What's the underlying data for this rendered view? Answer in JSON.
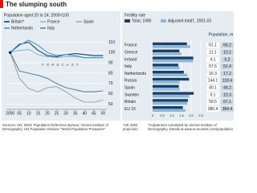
{
  "title": "The slumping south",
  "chart_data": [
    {
      "type": "line",
      "subtitle": "Population aged 20 to 24, 2000=100",
      "annotation": "FORECAST",
      "x": [
        2000,
        2005,
        2010,
        2015,
        2020,
        2025,
        2030,
        2035,
        2040,
        2045,
        2050
      ],
      "series": [
        {
          "name": "Britain*",
          "color": "#1c3f66",
          "values": [
            100,
            108,
            110,
            102,
            97,
            96,
            98,
            99,
            98,
            97,
            97
          ]
        },
        {
          "name": "France",
          "color": "#8cb9db",
          "values": [
            100,
            102,
            103,
            98,
            96,
            95,
            96,
            96,
            95,
            95,
            95
          ]
        },
        {
          "name": "Spain",
          "color": "#a6a6a6",
          "values": [
            100,
            75,
            65,
            62,
            66,
            67,
            62,
            56,
            52,
            52,
            54
          ]
        },
        {
          "name": "Netherlands",
          "color": "#3f9bc4",
          "values": [
            100,
            107,
            112,
            107,
            100,
            97,
            98,
            97,
            95,
            95,
            95
          ]
        },
        {
          "name": "Italy",
          "color": "#5f87a8",
          "values": [
            100,
            82,
            80,
            78,
            75,
            70,
            66,
            64,
            62,
            62,
            63
          ]
        }
      ],
      "xlim": [
        1998,
        2052
      ],
      "xticks": [
        2000,
        {
          "value": 2005,
          "label": "05"
        },
        {
          "value": 2010,
          "label": "10"
        },
        {
          "value": 2015,
          "label": "15"
        },
        {
          "value": 2020,
          "label": "20"
        },
        {
          "value": 2025,
          "label": "25"
        },
        {
          "value": 2030,
          "label": "30"
        },
        {
          "value": 2035,
          "label": "35"
        },
        {
          "value": 2040,
          "label": "40"
        },
        {
          "value": 2045,
          "label": "45"
        },
        {
          "value": 2050,
          "label": "50"
        }
      ],
      "ylim": [
        45,
        115
      ],
      "yticks": [
        50,
        60,
        70,
        80,
        90,
        100,
        110
      ],
      "grid": true,
      "source": "Sources: UN, 2003; Population Reference Bureau; Vienna Institute of Demography; UN Population Division \"World Population Prospects\"",
      "note": "*UK 2002 projection"
    },
    {
      "type": "hbar",
      "subtitle": "Fertility rate",
      "categories": [
        "France",
        "Greece",
        "Ireland",
        "Italy",
        "Netherlands",
        "Russia",
        "Spain",
        "Sweden",
        "Britain",
        "EU 15"
      ],
      "series": [
        {
          "name": "Total, 1990",
          "color": "#1c3f66",
          "values": [
            1.78,
            1.39,
            2.11,
            1.33,
            1.62,
            1.89,
            1.36,
            2.13,
            1.83,
            1.57
          ]
        },
        {
          "name": "Adjusted total†, 2001-03",
          "color": "#8cb9db",
          "values": [
            1.96,
            1.5,
            2.1,
            1.4,
            1.8,
            1.4,
            1.4,
            1.9,
            1.8,
            1.7
          ]
        }
      ],
      "xlim": [
        0,
        2.5
      ],
      "xticks": [
        0,
        0.5,
        {
          "value": 1,
          "label": "1.0"
        },
        1.5,
        {
          "value": 2,
          "label": "2.0"
        },
        2.5
      ],
      "grid": true,
      "table": {
        "title": "Population, m",
        "rows": [
          [
            61.1,
            66.2
          ],
          [
            11.1,
            10.2
          ],
          [
            4.1,
            6.2
          ],
          [
            57.5,
            51.4
          ],
          [
            16.3,
            17.2
          ],
          [
            144.1,
            118.4
          ],
          [
            40.1,
            44.2
          ],
          [
            9.1,
            10.3
          ],
          [
            59.5,
            67.1
          ],
          [
            380.4,
            384.4
          ]
        ]
      },
      "note": "†Adjustment calculated by Vienna Institute of Demography. Details at www.economist.com/population"
    }
  ]
}
